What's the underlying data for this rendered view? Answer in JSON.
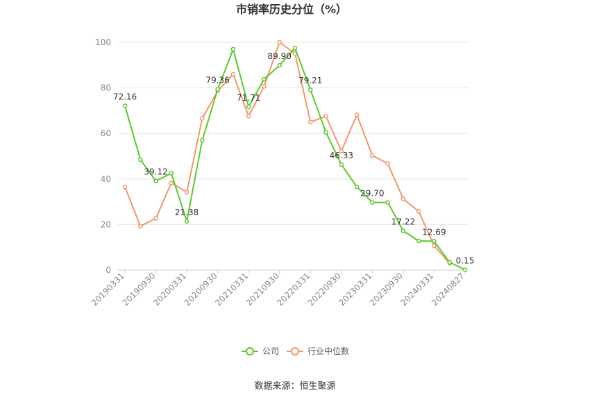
{
  "chart_data": {
    "type": "line",
    "title": "市销率历史分位（%）",
    "source": "数据来源：恒生聚源",
    "ylim": [
      0,
      100
    ],
    "yticks": [
      0,
      20,
      40,
      60,
      80,
      100
    ],
    "grid": true,
    "legend_position": "bottom",
    "x": [
      "20190331",
      "20190630",
      "20190930",
      "20191231",
      "20200331",
      "20200630",
      "20200930",
      "20201231",
      "20210331",
      "20210630",
      "20210930",
      "20211231",
      "20220331",
      "20220630",
      "20220930",
      "20221231",
      "20230331",
      "20230630",
      "20230930",
      "20231231",
      "20240331",
      "20240630",
      "20240827"
    ],
    "x_tick_labels": [
      "20190331",
      "20190930",
      "20200331",
      "20200930",
      "20210331",
      "20210930",
      "20220331",
      "20220930",
      "20230331",
      "20230930",
      "20240331",
      "20240827"
    ],
    "series": [
      {
        "name": "公司",
        "color": "#5cc92c",
        "values": [
          72.16,
          48.5,
          39.12,
          42.5,
          21.38,
          57.0,
          79.36,
          97.0,
          71.71,
          83.8,
          89.9,
          97.5,
          79.21,
          60.5,
          46.33,
          36.6,
          29.7,
          29.7,
          17.22,
          12.8,
          12.69,
          3.4,
          0.15
        ]
      },
      {
        "name": "行业中位数",
        "color": "#f4956a",
        "values": [
          36.5,
          19.3,
          22.7,
          38.3,
          34.2,
          66.6,
          78.7,
          86.0,
          67.6,
          80.7,
          100.0,
          95.1,
          65.0,
          67.6,
          52.2,
          68.2,
          50.3,
          46.8,
          31.3,
          25.8,
          10.7,
          3.0,
          null
        ]
      }
    ],
    "data_labels": [
      {
        "index": 0,
        "text": "72.16"
      },
      {
        "index": 2,
        "text": "39.12"
      },
      {
        "index": 4,
        "text": "21.38"
      },
      {
        "index": 6,
        "text": "79.36"
      },
      {
        "index": 8,
        "text": "71.71"
      },
      {
        "index": 10,
        "text": "89.90"
      },
      {
        "index": 12,
        "text": "79.21"
      },
      {
        "index": 14,
        "text": "46.33"
      },
      {
        "index": 16,
        "text": "29.70"
      },
      {
        "index": 18,
        "text": "17.22"
      },
      {
        "index": 20,
        "text": "12.69"
      },
      {
        "index": 22,
        "text": "0.15"
      }
    ]
  }
}
